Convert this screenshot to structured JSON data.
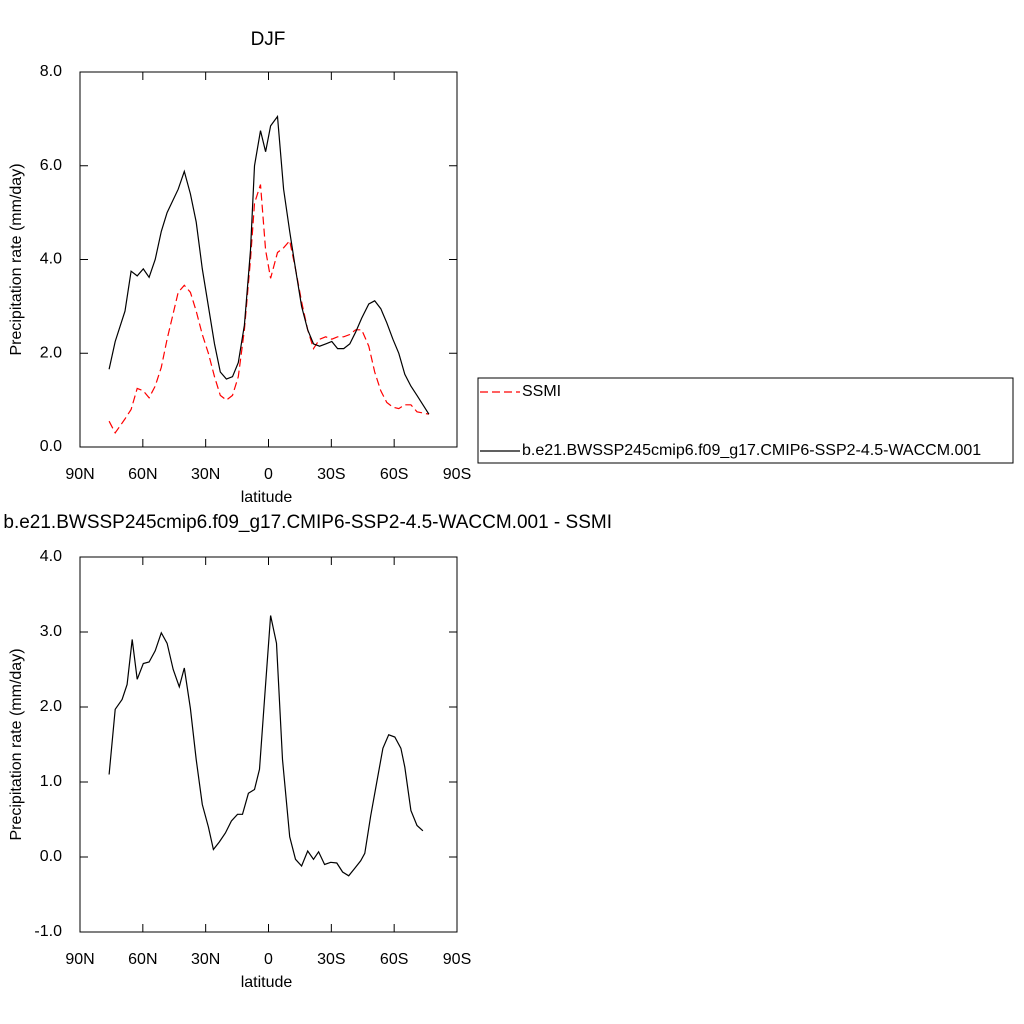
{
  "chart_data": [
    {
      "type": "line",
      "title": "DJF",
      "xlabel": "latitude",
      "ylabel": "Precipitation rate (mm/day)",
      "x": [
        76.1,
        73.2,
        68.5,
        65.6,
        62.7,
        59.8,
        57.0,
        54.1,
        51.2,
        48.4,
        43.1,
        40.2,
        37.3,
        34.5,
        31.6,
        28.7,
        25.8,
        23.0,
        20.1,
        17.2,
        14.4,
        11.5,
        8.6,
        6.7,
        3.8,
        1.4,
        -1.0,
        -4.3,
        -7.2,
        -10.1,
        -12.9,
        -15.8,
        -18.7,
        -21.5,
        -24.4,
        -27.3,
        -30.2,
        -33.0,
        -35.9,
        -38.8,
        -41.6,
        -44.5,
        -47.9,
        -50.7,
        -53.6,
        -56.5,
        -59.4,
        -62.2,
        -65.1,
        -68.0,
        -70.9,
        -76.6
      ],
      "series": [
        {
          "name": "SSMI",
          "color": "#ff0000",
          "dash": true,
          "values": [
            0.55,
            0.3,
            0.6,
            0.8,
            1.25,
            1.2,
            1.05,
            1.3,
            1.7,
            2.3,
            3.3,
            3.45,
            3.3,
            2.9,
            2.4,
            2.0,
            1.5,
            1.1,
            1.0,
            1.1,
            1.5,
            2.5,
            4.0,
            5.2,
            5.6,
            4.2,
            3.6,
            4.15,
            4.25,
            4.4,
            3.8,
            3.1,
            2.5,
            2.1,
            2.3,
            2.35,
            2.3,
            2.35,
            2.35,
            2.4,
            2.5,
            2.5,
            2.15,
            1.6,
            1.2,
            0.95,
            0.85,
            0.82,
            0.9,
            0.9,
            0.75,
            0.7
          ]
        },
        {
          "name": "b.e21.BWSSP245cmip6.f09_g17.CMIP6-SSP2-4.5-WACCM.001",
          "color": "#000000",
          "dash": false,
          "values": [
            1.66,
            2.25,
            2.9,
            3.75,
            3.65,
            3.8,
            3.62,
            4.0,
            4.6,
            5.0,
            5.5,
            5.88,
            5.4,
            4.8,
            3.8,
            3.0,
            2.2,
            1.6,
            1.45,
            1.5,
            1.8,
            2.6,
            4.2,
            6.0,
            6.75,
            6.3,
            6.85,
            7.05,
            5.5,
            4.6,
            3.8,
            3.0,
            2.5,
            2.2,
            2.15,
            2.2,
            2.25,
            2.1,
            2.1,
            2.2,
            2.45,
            2.75,
            3.05,
            3.12,
            2.95,
            2.65,
            2.3,
            2.0,
            1.55,
            1.3,
            1.1,
            0.7
          ]
        }
      ],
      "xlim": [
        90,
        -90
      ],
      "xticks": [
        {
          "value": 90,
          "label": "90N"
        },
        {
          "value": 60,
          "label": "60N"
        },
        {
          "value": 30,
          "label": "30N"
        },
        0,
        {
          "value": -30,
          "label": "30S"
        },
        {
          "value": -60,
          "label": "60S"
        },
        {
          "value": -90,
          "label": "90S"
        }
      ],
      "ylim": [
        0,
        8
      ],
      "yticks": [
        {
          "value": 0,
          "label": "0.0"
        },
        {
          "value": 2,
          "label": "2.0"
        },
        {
          "value": 4,
          "label": "4.0"
        },
        {
          "value": 6,
          "label": "6.0"
        },
        {
          "value": 8,
          "label": "8.0"
        }
      ],
      "legend": "right"
    },
    {
      "type": "line",
      "title": "b.e21.BWSSP245cmip6.f09_g17.CMIP6-SSP2-4.5-WACCM.001 - SSMI",
      "xlabel": "latitude",
      "ylabel": "Precipitation rate (mm/day)",
      "x": [
        76.1,
        73.2,
        69.9,
        67.5,
        65.1,
        62.7,
        59.8,
        57.0,
        54.1,
        51.2,
        48.4,
        45.5,
        42.6,
        40.2,
        37.3,
        34.5,
        31.6,
        28.7,
        26.3,
        23.5,
        20.6,
        17.7,
        14.8,
        12.4,
        9.6,
        6.7,
        4.3,
        1.9,
        -1.0,
        -3.8,
        -6.7,
        -10.1,
        -12.9,
        -15.8,
        -18.7,
        -21.5,
        -23.9,
        -26.8,
        -29.7,
        -32.6,
        -35.4,
        -38.3,
        -41.2,
        -44.0,
        -46.0,
        -48.8,
        -51.7,
        -54.6,
        -57.4,
        -60.3,
        -63.2,
        -65.1,
        -68.0,
        -70.9,
        -73.7
      ],
      "series": [
        {
          "color": "#000000",
          "dash": false,
          "values": [
            1.1,
            1.97,
            2.1,
            2.3,
            2.9,
            2.37,
            2.58,
            2.6,
            2.75,
            2.99,
            2.85,
            2.5,
            2.27,
            2.52,
            1.98,
            1.3,
            0.7,
            0.4,
            0.1,
            0.2,
            0.32,
            0.48,
            0.57,
            0.57,
            0.85,
            0.9,
            1.17,
            2.1,
            3.22,
            2.85,
            1.3,
            0.27,
            -0.03,
            -0.12,
            0.08,
            -0.03,
            0.07,
            -0.1,
            -0.07,
            -0.08,
            -0.2,
            -0.25,
            -0.15,
            -0.05,
            0.05,
            0.55,
            1.0,
            1.45,
            1.63,
            1.6,
            1.45,
            1.2,
            0.62,
            0.42,
            0.35
          ]
        }
      ],
      "xlim": [
        90,
        -90
      ],
      "xticks": [
        {
          "value": 90,
          "label": "90N"
        },
        {
          "value": 60,
          "label": "60N"
        },
        {
          "value": 30,
          "label": "30N"
        },
        0,
        {
          "value": -30,
          "label": "30S"
        },
        {
          "value": -60,
          "label": "60S"
        },
        {
          "value": -90,
          "label": "90S"
        }
      ],
      "ylim": [
        -1,
        4
      ],
      "yticks": [
        {
          "value": -1,
          "label": "-1.0"
        },
        {
          "value": 0,
          "label": "0.0"
        },
        {
          "value": 1,
          "label": "1.0"
        },
        {
          "value": 2,
          "label": "2.0"
        },
        {
          "value": 3,
          "label": "3.0"
        },
        {
          "value": 4,
          "label": "4.0"
        }
      ]
    }
  ]
}
